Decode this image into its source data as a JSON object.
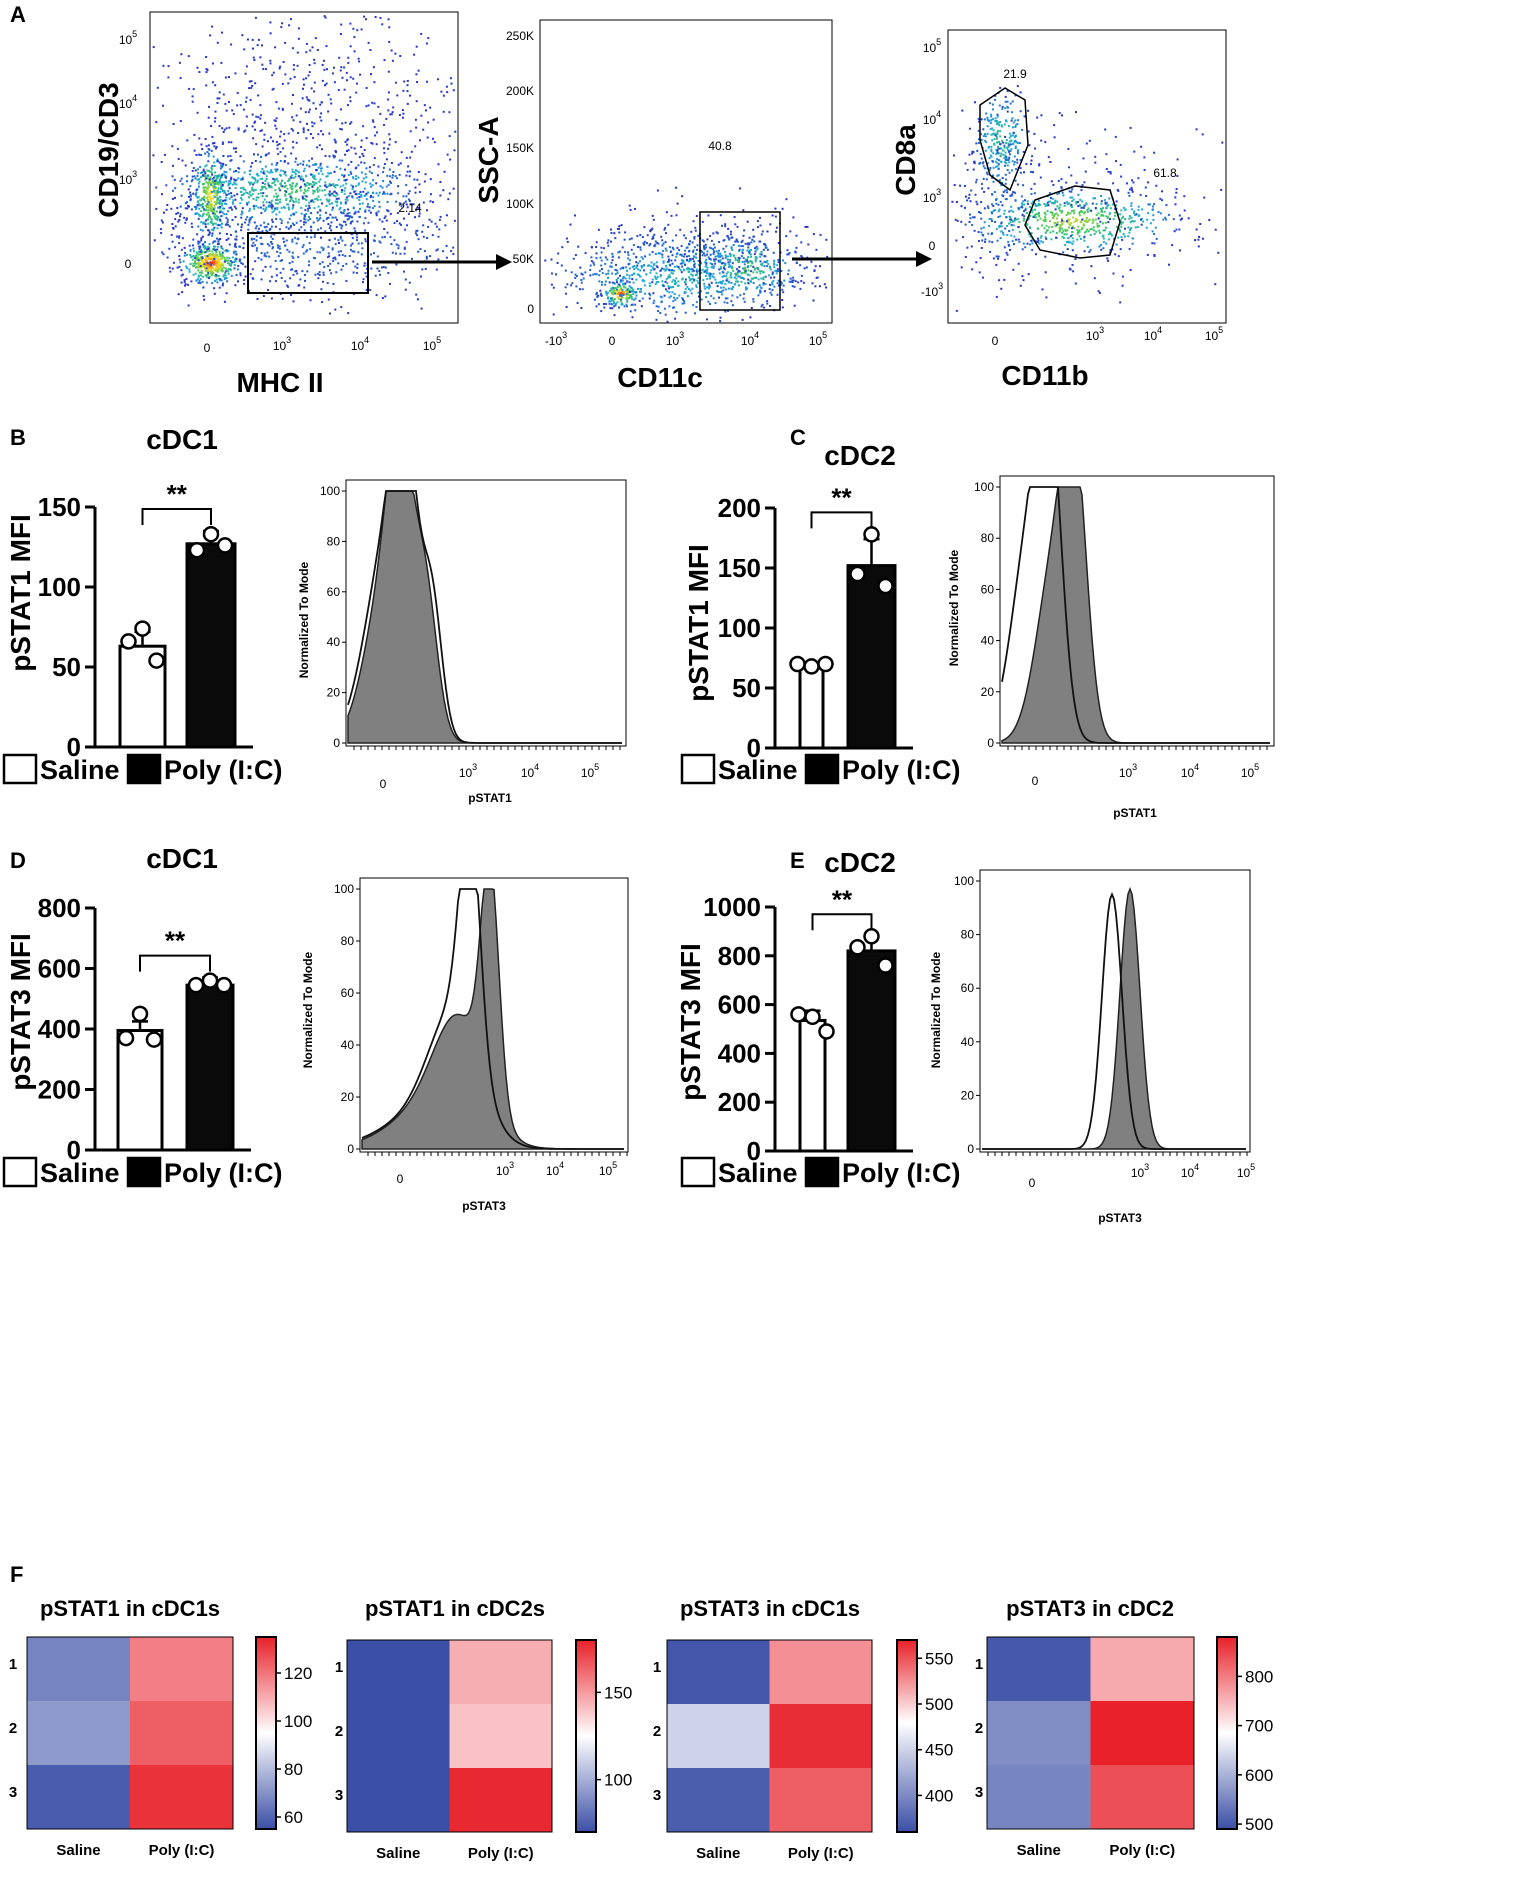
{
  "colors": {
    "bar_saline": "#ffffff",
    "bar_poly": "#0a0a0a",
    "hist_fill": "#808080",
    "hm_low": "#3b4fa6",
    "hm_mid": "#ffffff",
    "hm_high": "#e8212a"
  },
  "chart_data": {
    "panel_letters": [
      "A",
      "B",
      "C",
      "D",
      "E",
      "F"
    ],
    "flow_plots": [
      {
        "type": "scatter",
        "xlabel": "MHC II",
        "ylabel": "CD19/CD3",
        "x_ticks": [
          "0",
          "10",
          "10",
          "10"
        ],
        "x_exps": [
          "",
          "3",
          "4",
          "5"
        ],
        "y_ticks": [
          "0",
          "10",
          "10",
          "10"
        ],
        "y_exps": [
          "",
          "3",
          "4",
          "5"
        ],
        "gates": [
          "2.14"
        ]
      },
      {
        "type": "scatter",
        "xlabel": "CD11c",
        "ylabel": "SSC-A",
        "x_ticks": [
          "-10",
          "0",
          "10",
          "10",
          "10"
        ],
        "x_exps": [
          "3",
          "",
          "3",
          "4",
          "5"
        ],
        "y_ticks": [
          "0",
          "50K",
          "100K",
          "150K",
          "200K",
          "250K"
        ],
        "gates": [
          "40.8"
        ]
      },
      {
        "type": "scatter",
        "xlabel": "CD11b",
        "ylabel": "CD8a",
        "x_ticks": [
          "0",
          "10",
          "10",
          "10"
        ],
        "x_exps": [
          "",
          "3",
          "4",
          "5"
        ],
        "y_ticks": [
          "-10",
          "0",
          "10",
          "10",
          "10"
        ],
        "y_exps": [
          "3",
          "",
          "3",
          "4",
          "5"
        ],
        "gates": [
          "21.9",
          "61.8"
        ]
      }
    ],
    "bar_charts": [
      {
        "type": "bar",
        "title": "cDC1",
        "ylabel": "pSTAT1 MFI",
        "categories": [
          "Saline",
          "Poly (I:C)"
        ],
        "values": [
          63,
          127
        ],
        "errors": [
          9,
          8
        ],
        "points": [
          [
            74,
            66,
            54
          ],
          [
            133,
            123,
            126
          ]
        ],
        "ylim": [
          0,
          150
        ],
        "yticks": [
          "0",
          "50",
          "100",
          "150"
        ],
        "significance": "**"
      },
      {
        "type": "bar",
        "title": "cDC2",
        "ylabel": "pSTAT1 MFI",
        "categories": [
          "Saline",
          "Poly (I:C)"
        ],
        "values": [
          69,
          152
        ],
        "errors": [
          2,
          22
        ],
        "points": [
          [
            68,
            70,
            70
          ],
          [
            178,
            145,
            135
          ]
        ],
        "ylim": [
          0,
          200
        ],
        "yticks": [
          "0",
          "50",
          "100",
          "150",
          "200"
        ],
        "significance": "**"
      },
      {
        "type": "bar",
        "title": "cDC1",
        "ylabel": "pSTAT3 MFI",
        "categories": [
          "Saline",
          "Poly (I:C)"
        ],
        "values": [
          395,
          545
        ],
        "errors": [
          30,
          25
        ],
        "points": [
          [
            450,
            370,
            365
          ],
          [
            560,
            545,
            545
          ]
        ],
        "ylim": [
          0,
          800
        ],
        "yticks": [
          "0",
          "200",
          "400",
          "600",
          "800"
        ],
        "significance": "**"
      },
      {
        "type": "bar",
        "title": "cDC2",
        "ylabel": "pSTAT3 MFI",
        "categories": [
          "Saline",
          "Poly (I:C)"
        ],
        "values": [
          535,
          820
        ],
        "errors": [
          40,
          60
        ],
        "points": [
          [
            550,
            560,
            490
          ],
          [
            880,
            835,
            760
          ]
        ],
        "ylim": [
          0,
          1000
        ],
        "yticks": [
          "0",
          "200",
          "400",
          "600",
          "800",
          "1000"
        ],
        "significance": "**"
      }
    ],
    "histograms": [
      {
        "type": "area",
        "xlabel": "pSTAT1",
        "ylabel": "Normalized To Mode",
        "yticks": [
          "0",
          "20",
          "40",
          "60",
          "80",
          "100"
        ],
        "x_ticks": [
          "0",
          "10",
          "10",
          "10"
        ],
        "x_exps": [
          "",
          "3",
          "4",
          "5"
        ]
      },
      {
        "type": "area",
        "xlabel": "pSTAT1",
        "ylabel": "Normalized To Mode",
        "yticks": [
          "0",
          "20",
          "40",
          "60",
          "80",
          "100"
        ],
        "x_ticks": [
          "0",
          "10",
          "10",
          "10"
        ],
        "x_exps": [
          "",
          "3",
          "4",
          "5"
        ]
      },
      {
        "type": "area",
        "xlabel": "pSTAT3",
        "ylabel": "Normalized To Mode",
        "yticks": [
          "0",
          "20",
          "40",
          "60",
          "80",
          "100"
        ],
        "x_ticks": [
          "0",
          "10",
          "10",
          "10"
        ],
        "x_exps": [
          "",
          "3",
          "4",
          "5"
        ]
      },
      {
        "type": "area",
        "xlabel": "pSTAT3",
        "ylabel": "Normalized To Mode",
        "yticks": [
          "0",
          "20",
          "40",
          "60",
          "80",
          "100"
        ],
        "x_ticks": [
          "0",
          "10",
          "10",
          "10"
        ],
        "x_exps": [
          "",
          "3",
          "4",
          "5"
        ]
      }
    ],
    "legend": {
      "saline": "Saline",
      "poly": "Poly (I:C)"
    },
    "heatmaps": [
      {
        "type": "heatmap",
        "title": "pSTAT1 in cDC1s",
        "rows": [
          "1",
          "2",
          "3"
        ],
        "cols": [
          "Saline",
          "Poly (I:C)"
        ],
        "values": [
          [
            67,
            118
          ],
          [
            72,
            124
          ],
          [
            58,
            132
          ]
        ],
        "range": [
          55,
          135
        ],
        "mid": 95,
        "cbar_ticks": [
          60,
          80,
          100,
          120
        ]
      },
      {
        "type": "heatmap",
        "title": "pSTAT1 in cDC2s",
        "rows": [
          "1",
          "2",
          "3"
        ],
        "cols": [
          "Saline",
          "Poly (I:C)"
        ],
        "values": [
          [
            70,
            145
          ],
          [
            69,
            140
          ],
          [
            70,
            178
          ]
        ],
        "range": [
          70,
          180
        ],
        "mid": 125,
        "cbar_ticks": [
          100,
          150
        ]
      },
      {
        "type": "heatmap",
        "title": "pSTAT3 in cDC1s",
        "rows": [
          "1",
          "2",
          "3"
        ],
        "cols": [
          "Saline",
          "Poly (I:C)"
        ],
        "values": [
          [
            365,
            525
          ],
          [
            450,
            565
          ],
          [
            370,
            545
          ]
        ],
        "range": [
          360,
          570
        ],
        "mid": 480,
        "cbar_ticks": [
          400,
          450,
          500,
          550
        ]
      },
      {
        "type": "heatmap",
        "title": "pSTAT3 in cDC2",
        "rows": [
          "1",
          "2",
          "3"
        ],
        "cols": [
          "Saline",
          "Poly (I:C)"
        ],
        "values": [
          [
            500,
            760
          ],
          [
            560,
            880
          ],
          [
            550,
            840
          ]
        ],
        "range": [
          490,
          880
        ],
        "mid": 685,
        "cbar_ticks": [
          500,
          600,
          700,
          800
        ]
      }
    ]
  }
}
